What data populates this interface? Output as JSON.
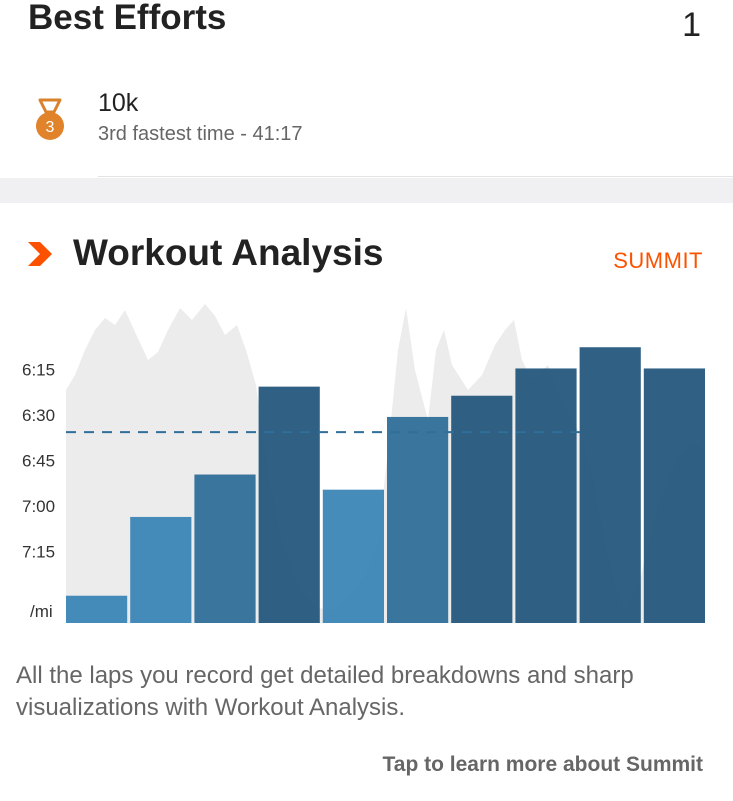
{
  "best_efforts": {
    "title": "Best Efforts",
    "count": "1",
    "items": [
      {
        "medal_icon": "bronze-medal-icon",
        "rank": "3",
        "name": "10k",
        "detail": "3rd fastest time - 41:17"
      }
    ]
  },
  "workout_analysis": {
    "icon": "strava-chevron-icon",
    "title": "Workout Analysis",
    "summit_label": "SUMMIT",
    "description": "All the laps you record get detailed breakdowns and sharp visualizations with Workout Analysis.",
    "learn_more": "Tap to learn more about Summit"
  },
  "colors": {
    "accent": "#fc5200",
    "bar_light": "#3c86b7",
    "bar_mid": "#2f6f99",
    "bar_dark": "#25577c",
    "background_trace": "#ececec"
  },
  "chart_data": {
    "type": "bar",
    "y_ticks": [
      "6:15",
      "6:30",
      "6:45",
      "7:00",
      "7:15"
    ],
    "y_unit_label": "/mi",
    "y_axis_inverted": true,
    "ylim_seconds_per_mi": [
      360,
      459
    ],
    "average_pace_seconds_per_mi": 396,
    "laps": [
      {
        "lap": 1,
        "pace_seconds_per_mi": 450
      },
      {
        "lap": 2,
        "pace_seconds_per_mi": 424
      },
      {
        "lap": 3,
        "pace_seconds_per_mi": 410
      },
      {
        "lap": 4,
        "pace_seconds_per_mi": 381
      },
      {
        "lap": 5,
        "pace_seconds_per_mi": 415
      },
      {
        "lap": 6,
        "pace_seconds_per_mi": 391
      },
      {
        "lap": 7,
        "pace_seconds_per_mi": 384
      },
      {
        "lap": 8,
        "pace_seconds_per_mi": 375
      },
      {
        "lap": 9,
        "pace_seconds_per_mi": 368
      },
      {
        "lap": 10,
        "pace_seconds_per_mi": 375
      }
    ]
  }
}
